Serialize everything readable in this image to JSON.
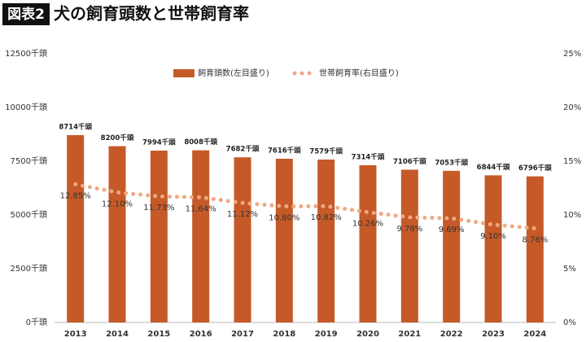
{
  "chart_data": {
    "type": "bar_line",
    "badge": "図表2",
    "title": "犬の飼育頭数と世帯飼育率",
    "categories": [
      "2013",
      "2014",
      "2015",
      "2016",
      "2017",
      "2018",
      "2019",
      "2020",
      "2021",
      "2022",
      "2023",
      "2024"
    ],
    "series": [
      {
        "name": "飼育頭数(左目盛り)",
        "type": "bar",
        "color": "#c55a28",
        "values": [
          8714,
          8200,
          7994,
          8008,
          7682,
          7616,
          7579,
          7314,
          7106,
          7053,
          6844,
          6796
        ],
        "value_labels": [
          "8714千頭",
          "8200千頭",
          "7994千頭",
          "8008千頭",
          "7682千頭",
          "7616千頭",
          "7579千頭",
          "7314千頭",
          "7106千頭",
          "7053千頭",
          "6844千頭",
          "6796千頭"
        ]
      },
      {
        "name": "世帯飼育率(右目盛り)",
        "type": "line",
        "axis": "y2",
        "color": "#f0a882",
        "values": [
          12.85,
          12.1,
          11.73,
          11.64,
          11.12,
          10.8,
          10.82,
          10.26,
          9.78,
          9.69,
          9.1,
          8.76
        ],
        "value_labels": [
          "12.85%",
          "12.10%",
          "11.73%",
          "11.64%",
          "11.12%",
          "10.80%",
          "10.82%",
          "10.26%",
          "9.78%",
          "9.69%",
          "9.10%",
          "8.76%"
        ]
      }
    ],
    "ylim": [
      0,
      12500
    ],
    "yticks": [
      {
        "value": 0,
        "label": "0千頭"
      },
      {
        "value": 2500,
        "label": "2500千頭"
      },
      {
        "value": 5000,
        "label": "5000千頭"
      },
      {
        "value": 7500,
        "label": "7500千頭"
      },
      {
        "value": 10000,
        "label": "10000千頭"
      },
      {
        "value": 12500,
        "label": "12500千頭"
      }
    ],
    "y2lim": [
      0,
      25
    ],
    "y2ticks": [
      {
        "value": 0,
        "label": "0%"
      },
      {
        "value": 5,
        "label": "5%"
      },
      {
        "value": 10,
        "label": "10%"
      },
      {
        "value": 15,
        "label": "15%"
      },
      {
        "value": 20,
        "label": "20%"
      },
      {
        "value": 25,
        "label": "25%"
      }
    ],
    "grid": false
  }
}
